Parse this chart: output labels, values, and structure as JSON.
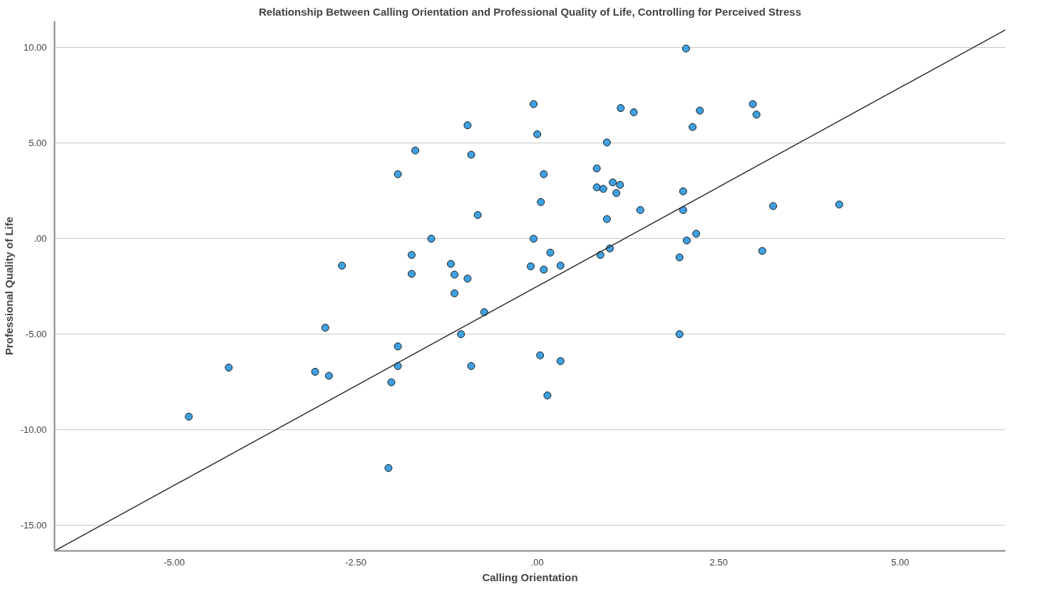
{
  "chart_data": {
    "type": "scatter",
    "title": "Relationship Between Calling Orientation and Professional Quality of Life, Controlling for Perceived Stress",
    "xlabel": "Calling Orientation",
    "ylabel": "Professional Quality of Life",
    "xlim": [
      -6.65,
      6.45
    ],
    "ylim": [
      -16.35,
      11.4
    ],
    "xticks": [
      {
        "value": -5,
        "label": "-5.00"
      },
      {
        "value": -2.5,
        "label": "-2.50"
      },
      {
        "value": 0,
        "label": ".00"
      },
      {
        "value": 2.5,
        "label": "2.50"
      },
      {
        "value": 5,
        "label": "5.00"
      }
    ],
    "yticks": [
      {
        "value": -15,
        "label": "-15.00"
      },
      {
        "value": -10,
        "label": "-10.00"
      },
      {
        "value": -5,
        "label": "-5.00"
      },
      {
        "value": 0,
        "label": ".00"
      },
      {
        "value": 5,
        "label": "5.00"
      },
      {
        "value": 10,
        "label": "10.00"
      }
    ],
    "grid": "y",
    "marker": "circle",
    "series": [
      {
        "color": "#3fa0e0",
        "x": [
          2.05,
          -0.05,
          1.15,
          1.33,
          2.24,
          2.97,
          3.02,
          -0.96,
          0.0,
          0.96,
          2.14,
          -1.68,
          -0.91,
          -1.92,
          0.82,
          0.09,
          0.82,
          0.91,
          1.04,
          1.14,
          1.09,
          2.01,
          0.05,
          2.01,
          1.42,
          3.25,
          4.16,
          -0.82,
          0.96,
          -1.46,
          -0.05,
          2.06,
          2.19,
          1.0,
          -1.73,
          0.18,
          0.87,
          3.1,
          1.96,
          -2.69,
          -1.19,
          -0.09,
          0.32,
          0.09,
          -1.73,
          -1.14,
          -0.96,
          -1.14,
          -0.73,
          -2.92,
          -1.05,
          1.96,
          -1.92,
          0.04,
          0.32,
          -1.92,
          -0.91,
          -4.25,
          -3.06,
          -2.87,
          -2.01,
          0.14,
          -4.8,
          -2.05
        ],
        "values": [
          9.96,
          7.05,
          6.84,
          6.62,
          6.71,
          7.05,
          6.5,
          5.94,
          5.47,
          5.04,
          5.85,
          4.62,
          4.4,
          3.38,
          3.68,
          3.38,
          2.69,
          2.61,
          2.95,
          2.82,
          2.39,
          2.48,
          1.92,
          1.5,
          1.5,
          1.71,
          1.79,
          1.24,
          1.03,
          0.0,
          0.0,
          -0.09,
          0.26,
          -0.51,
          -0.85,
          -0.73,
          -0.85,
          -0.64,
          -0.98,
          -1.41,
          -1.32,
          -1.45,
          -1.41,
          -1.62,
          -1.84,
          -1.88,
          -2.09,
          -2.86,
          -3.85,
          -4.66,
          -5.0,
          -5.0,
          -5.64,
          -6.11,
          -6.41,
          -6.67,
          -6.67,
          -6.75,
          -6.97,
          -7.18,
          -7.52,
          -8.21,
          -9.32,
          -12.01
        ]
      },
      {
        "type": "line",
        "color": "#333333",
        "marker": "none",
        "line_style": "solid",
        "x": [
          -6.65,
          6.45
        ],
        "values": [
          -16.35,
          10.94
        ]
      }
    ]
  }
}
